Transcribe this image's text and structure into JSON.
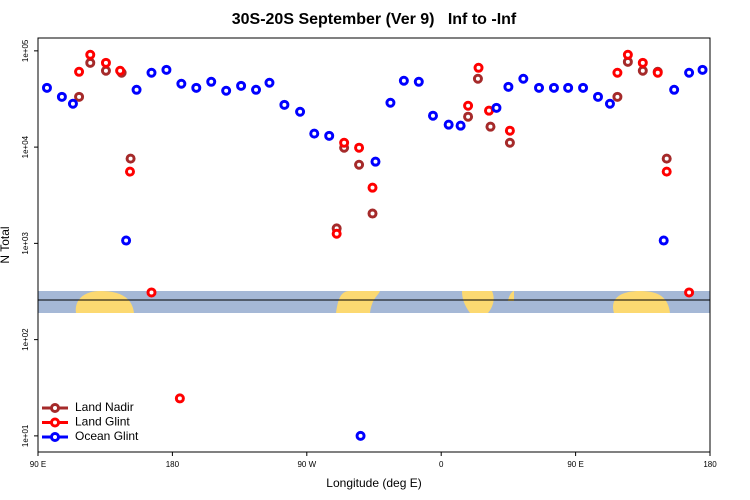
{
  "chart_data": {
    "type": "scatter",
    "title": "30S-20S September (Ver 9)   Inf to -Inf",
    "x_label": "Longitude (deg E)",
    "y_label": "N Total",
    "log_y": true,
    "legend": "lower left",
    "xlim": [
      90,
      540
    ],
    "xticks": [
      {
        "value": 90,
        "label": "90 E"
      },
      180,
      {
        "value": 270,
        "label": "90 W"
      },
      {
        "value": 360,
        "label": "0"
      },
      {
        "value": 450,
        "label": "90 E"
      },
      {
        "value": 540,
        "label": "180"
      }
    ],
    "ylim": [
      6.8,
      136000
    ],
    "yticks": [
      {
        "value": 10,
        "label": "1e+01"
      },
      {
        "value": 100,
        "label": "1e+02"
      },
      {
        "value": 1000,
        "label": "1e+03"
      },
      {
        "value": 10000,
        "label": "1e+04"
      },
      {
        "value": 100000,
        "label": "1e+05"
      }
    ],
    "series": [
      {
        "name": "Land Nadir",
        "color": "#a52a2a",
        "x": [
          117.5,
          125,
          135.5,
          146,
          152,
          290,
          295,
          305,
          314,
          378,
          384.6,
          393,
          406,
          478,
          485,
          495,
          505,
          511
        ],
        "values": [
          33300,
          75100,
          62100,
          59200,
          7590,
          1430,
          9860,
          6560,
          2040,
          20700,
          51300,
          16300,
          11100,
          33300,
          76900,
          62100,
          60600,
          7590
        ]
      },
      {
        "name": "Land Glint",
        "color": "#ff0000",
        "x": [
          117.5,
          125,
          135.5,
          145,
          151.6,
          166,
          185,
          290,
          295,
          305,
          314,
          378,
          385,
          392,
          406,
          478,
          485,
          495,
          505,
          511,
          526
        ],
        "values": [
          60600,
          91000,
          75100,
          62100,
          5560,
          309,
          24.5,
          1260,
          11100,
          9860,
          3790,
          26900,
          66700,
          23900,
          14800,
          59200,
          91000,
          75100,
          59200,
          5560,
          309
        ]
      },
      {
        "name": "Ocean Glint",
        "color": "#0000ff",
        "x": [
          96,
          106,
          113.4,
          149,
          156,
          166,
          176,
          186,
          196,
          206,
          216,
          226,
          236,
          245,
          255,
          265.5,
          275,
          285,
          306,
          316,
          326,
          335,
          345,
          354.5,
          365,
          373,
          397,
          405,
          415,
          425.5,
          435.5,
          445,
          455,
          465,
          473,
          509,
          516,
          526,
          535
        ],
        "values": [
          41300,
          33300,
          28200,
          1070,
          39400,
          59200,
          63500,
          45500,
          41300,
          47700,
          38500,
          43300,
          39400,
          46600,
          27500,
          23300,
          13800,
          13100,
          10,
          7060,
          28900,
          48900,
          47700,
          21200,
          17100,
          16700,
          25600,
          42300,
          51300,
          41300,
          41300,
          41300,
          41300,
          33300,
          28200,
          1070,
          39400,
          59200,
          63500
        ]
      }
    ]
  }
}
